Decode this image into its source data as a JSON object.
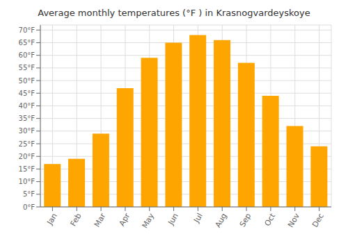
{
  "chart_data": {
    "type": "bar",
    "title": "Average monthly temperatures (°F ) in Krasnogvardeyskoye",
    "categories": [
      "Jan",
      "Feb",
      "Mar",
      "Apr",
      "May",
      "Jun",
      "Jul",
      "Aug",
      "Sep",
      "Oct",
      "Nov",
      "Dec"
    ],
    "values": [
      17,
      19,
      29,
      47,
      59,
      65,
      68,
      66,
      57,
      44,
      32,
      24
    ],
    "color": "#FFA500",
    "ylim": [
      0,
      72
    ],
    "yticks": [
      {
        "value": 0,
        "label": "0°F"
      },
      {
        "value": 5,
        "label": "5°F"
      },
      {
        "value": 10,
        "label": "10°F"
      },
      {
        "value": 15,
        "label": "15°F"
      },
      {
        "value": 20,
        "label": "20°F"
      },
      {
        "value": 25,
        "label": "25°F"
      },
      {
        "value": 30,
        "label": "30°F"
      },
      {
        "value": 35,
        "label": "35°F"
      },
      {
        "value": 40,
        "label": "40°F"
      },
      {
        "value": 45,
        "label": "45°F"
      },
      {
        "value": 50,
        "label": "50°F"
      },
      {
        "value": 55,
        "label": "55°F"
      },
      {
        "value": 60,
        "label": "60°F"
      },
      {
        "value": 65,
        "label": "65°F"
      },
      {
        "value": 70,
        "label": "70°F"
      }
    ],
    "grid": true
  }
}
